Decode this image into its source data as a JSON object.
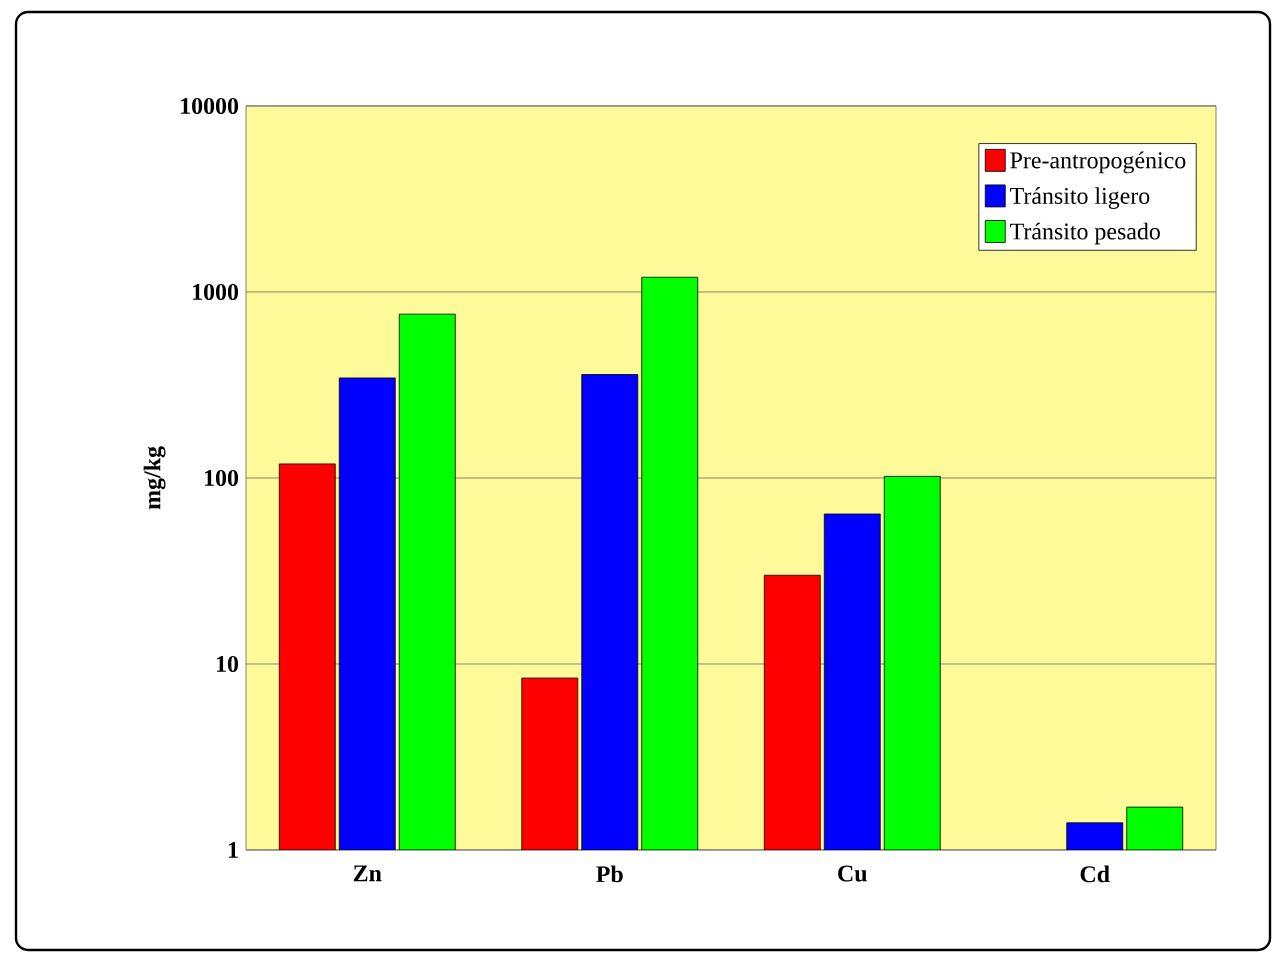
{
  "chart_data": {
    "type": "bar",
    "ylabel": "mg/kg",
    "categories": [
      "Zn",
      "Pb",
      "Cu",
      "Cd"
    ],
    "series": [
      {
        "name": "Pre-antropogénico",
        "color": "#ff0000",
        "values": [
          119,
          8.4,
          30,
          null
        ]
      },
      {
        "name": "Tránsito ligero",
        "color": "#0000ff",
        "values": [
          345,
          360,
          64,
          1.4
        ]
      },
      {
        "name": "Tránsito  pesado",
        "color": "#00ff00",
        "values": [
          760,
          1200,
          102,
          1.7
        ]
      }
    ],
    "log": "y",
    "ylim": [
      1,
      10000
    ],
    "yticks": [
      1,
      10,
      100,
      1000,
      10000
    ],
    "grid": "y",
    "legend": "top right"
  }
}
